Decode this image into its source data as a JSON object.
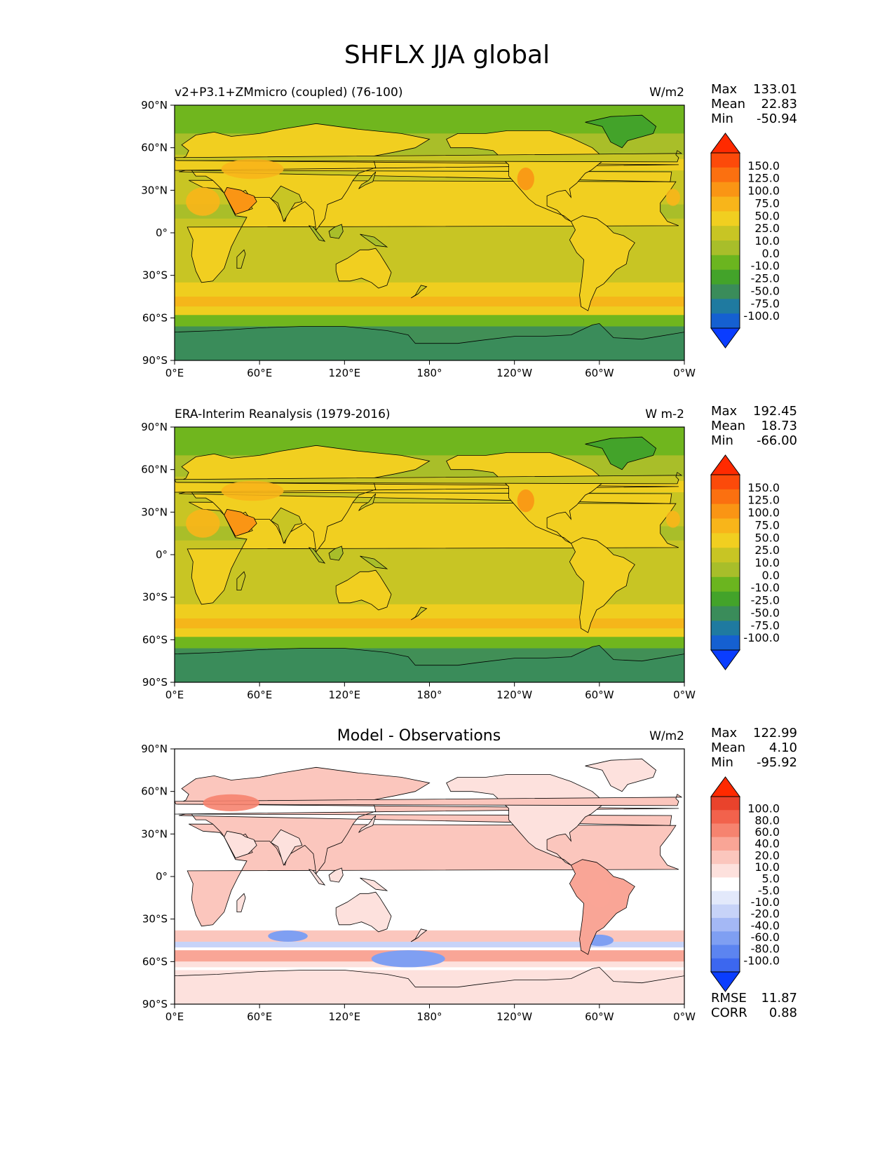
{
  "page_title": "SHFLX JJA global",
  "colors": {
    "abs_fill": [
      "#0a3dff",
      "#1560d1",
      "#1f7aa0",
      "#3a8c5a",
      "#43a32a",
      "#6bb51f",
      "#a8be2a",
      "#c8c524",
      "#f1cf20",
      "#f8b51a",
      "#fa9514",
      "#fb7010",
      "#fc4a0a",
      "#ff2a00"
    ],
    "diff_fill": [
      "#0a3dff",
      "#3c67ef",
      "#5c84f0",
      "#7f9ff2",
      "#a4b8f5",
      "#c7d3f8",
      "#e3e9fb",
      "#ffffff",
      "#fde1dd",
      "#fbc6bd",
      "#f9a596",
      "#f6836f",
      "#f2624c",
      "#e9432c",
      "#ff2a00"
    ],
    "ocean_abs": "#c8c524",
    "ocean_abs2": "#a8be2a",
    "ice_abs": "#3a8c5a",
    "ocean_diff": "#ffffff"
  },
  "chart_data": [
    {
      "type": "heatmap",
      "title": "",
      "left_title": "v2+P3.1+ZMmicro (coupled) (76-100)",
      "units": "W/m2",
      "stats": [
        {
          "label": "Max",
          "value": "133.01"
        },
        {
          "label": "Mean",
          "value": "22.83"
        },
        {
          "label": "Min",
          "value": "-50.94"
        }
      ],
      "extra_stats": [],
      "colorbar_levels": [
        "150.0",
        "125.0",
        "100.0",
        "75.0",
        "50.0",
        "25.0",
        "10.0",
        "0.0",
        "-10.0",
        "-25.0",
        "-50.0",
        "-75.0",
        "-100.0"
      ],
      "xticks": [
        "0°E",
        "60°E",
        "120°E",
        "180°",
        "120°W",
        "60°W",
        "0°W"
      ],
      "yticks": [
        "90°N",
        "60°N",
        "30°N",
        "0°",
        "30°S",
        "60°S",
        "90°S"
      ],
      "xlim": [
        0,
        360
      ],
      "ylim": [
        -90,
        90
      ]
    },
    {
      "type": "heatmap",
      "title": "",
      "left_title": "ERA-Interim Reanalysis (1979-2016)",
      "units": "W m-2",
      "stats": [
        {
          "label": "Max",
          "value": "192.45"
        },
        {
          "label": "Mean",
          "value": "18.73"
        },
        {
          "label": "Min",
          "value": "-66.00"
        }
      ],
      "extra_stats": [],
      "colorbar_levels": [
        "150.0",
        "125.0",
        "100.0",
        "75.0",
        "50.0",
        "25.0",
        "10.0",
        "0.0",
        "-10.0",
        "-25.0",
        "-50.0",
        "-75.0",
        "-100.0"
      ],
      "xticks": [
        "0°E",
        "60°E",
        "120°E",
        "180°",
        "120°W",
        "60°W",
        "0°W"
      ],
      "yticks": [
        "90°N",
        "60°N",
        "30°N",
        "0°",
        "30°S",
        "60°S",
        "90°S"
      ],
      "xlim": [
        0,
        360
      ],
      "ylim": [
        -90,
        90
      ]
    },
    {
      "type": "heatmap",
      "title": "Model - Observations",
      "left_title": "",
      "units": "W/m2",
      "stats": [
        {
          "label": "Max",
          "value": "122.99"
        },
        {
          "label": "Mean",
          "value": "4.10"
        },
        {
          "label": "Min",
          "value": "-95.92"
        }
      ],
      "extra_stats": [
        {
          "label": "RMSE",
          "value": "11.87"
        },
        {
          "label": "CORR",
          "value": "0.88"
        }
      ],
      "colorbar_levels": [
        "100.0",
        "80.0",
        "60.0",
        "40.0",
        "20.0",
        "10.0",
        "5.0",
        "-5.0",
        "-10.0",
        "-20.0",
        "-40.0",
        "-60.0",
        "-80.0",
        "-100.0"
      ],
      "xticks": [
        "0°E",
        "60°E",
        "120°E",
        "180°",
        "120°W",
        "60°W",
        "0°W"
      ],
      "yticks": [
        "90°N",
        "60°N",
        "30°N",
        "0°",
        "30°S",
        "60°S",
        "90°S"
      ],
      "xlim": [
        0,
        360
      ],
      "ylim": [
        -90,
        90
      ]
    }
  ]
}
